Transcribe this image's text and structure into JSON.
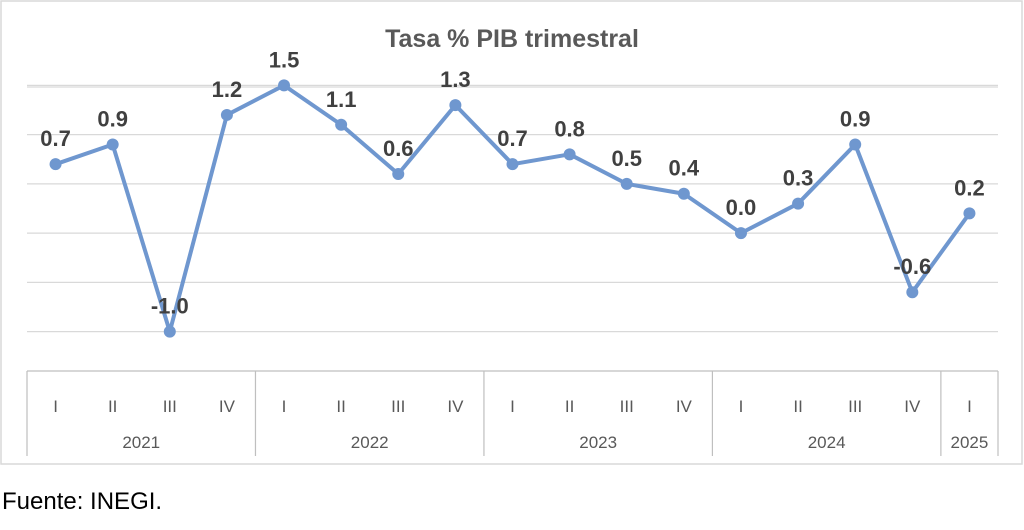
{
  "chart_data": {
    "type": "line",
    "title": "Tasa % PIB trimestral",
    "series_color": "#6f97cf",
    "ylim": [
      -1.4,
      1.9
    ],
    "grid": true,
    "legend": "none",
    "categories": [
      "I",
      "II",
      "III",
      "IV",
      "I",
      "II",
      "III",
      "IV",
      "I",
      "II",
      "III",
      "IV",
      "I",
      "II",
      "III",
      "IV",
      "I"
    ],
    "groups": [
      {
        "label": "2021",
        "count": 4
      },
      {
        "label": "2022",
        "count": 4
      },
      {
        "label": "2023",
        "count": 4
      },
      {
        "label": "2024",
        "count": 4
      },
      {
        "label": "2025",
        "count": 1
      }
    ],
    "values": [
      0.7,
      0.9,
      -1.0,
      1.2,
      1.5,
      1.1,
      0.6,
      1.3,
      0.7,
      0.8,
      0.5,
      0.4,
      0.0,
      0.3,
      0.9,
      -0.6,
      0.2
    ],
    "value_labels": [
      "0.7",
      "0.9",
      "-1.0",
      "1.2",
      "1.5",
      "1.1",
      "0.6",
      "1.3",
      "0.7",
      "0.8",
      "0.5",
      "0.4",
      "0.0",
      "0.3",
      "0.9",
      "-0.6",
      "0.2"
    ]
  },
  "source": "Fuente: INEGI."
}
